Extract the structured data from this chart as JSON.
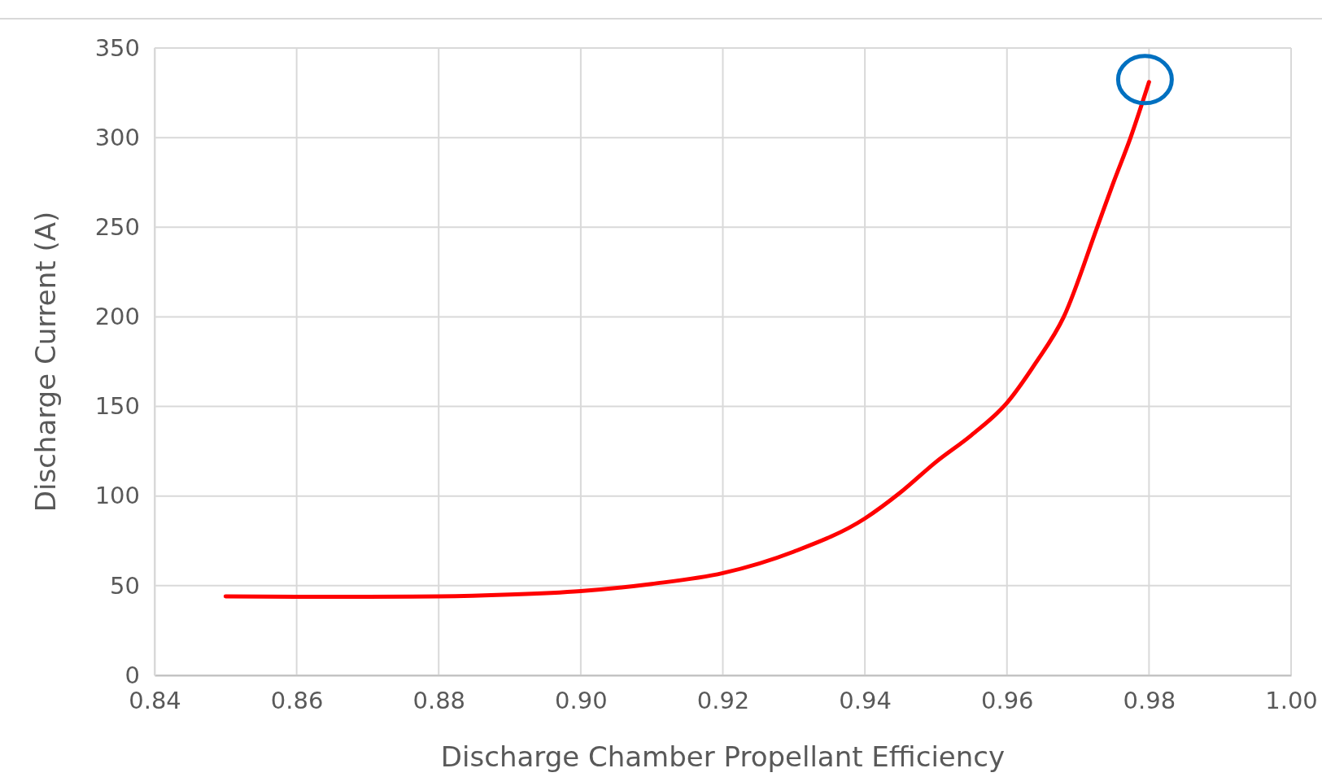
{
  "chart_data": {
    "type": "line",
    "xlabel": "Discharge Chamber Propellant Efficiency",
    "ylabel": "Discharge Current (A)",
    "x": [
      0.85,
      0.86,
      0.87,
      0.88,
      0.89,
      0.9,
      0.91,
      0.92,
      0.93,
      0.94,
      0.945,
      0.95,
      0.955,
      0.96,
      0.964,
      0.968,
      0.9727,
      0.975,
      0.9774,
      0.98
    ],
    "series": [
      {
        "color": "#ff0000",
        "values": [
          44,
          43.8,
          43.8,
          44,
          45,
          47,
          51,
          57,
          69,
          87.5,
          102,
          119,
          134,
          152,
          174,
          200,
          250,
          275,
          300,
          331
        ]
      }
    ],
    "xlim": [
      0.84,
      1.0
    ],
    "xticks": [
      {
        "value": 0.84,
        "label": "0.84"
      },
      {
        "value": 0.86,
        "label": "0.86"
      },
      {
        "value": 0.88,
        "label": "0.88"
      },
      {
        "value": 0.9,
        "label": "0.90"
      },
      {
        "value": 0.92,
        "label": "0.92"
      },
      {
        "value": 0.94,
        "label": "0.94"
      },
      {
        "value": 0.96,
        "label": "0.96"
      },
      {
        "value": 0.98,
        "label": "0.98"
      },
      {
        "value": 1.0,
        "label": "1.00"
      }
    ],
    "ylim": [
      0,
      350
    ],
    "yticks": [
      0,
      50,
      100,
      150,
      200,
      250,
      300,
      350
    ],
    "grid": true,
    "marker": "none",
    "line_style": "solid"
  }
}
